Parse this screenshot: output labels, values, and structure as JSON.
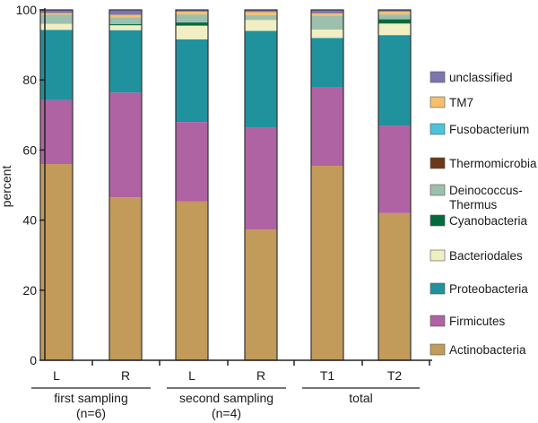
{
  "chart_data": {
    "type": "bar",
    "stacked": true,
    "ylabel": "percent",
    "ylim": [
      0,
      100
    ],
    "yticks": [
      0,
      20,
      40,
      60,
      80,
      100
    ],
    "grid": false,
    "legend_position": "right",
    "categories": [
      "L",
      "R",
      "L",
      "R",
      "T1",
      "T2"
    ],
    "groups": [
      {
        "name": "first sampling",
        "subtitle": "(n=6)",
        "categories": [
          0,
          1
        ]
      },
      {
        "name": "second sampling",
        "subtitle": "(n=4)",
        "categories": [
          2,
          3
        ]
      },
      {
        "name": "total",
        "subtitle": "",
        "categories": [
          4,
          5
        ]
      }
    ],
    "series": [
      {
        "name": "Actinobacteria",
        "color": "#c29a5a",
        "values": [
          56.0,
          46.5,
          45.3,
          37.3,
          55.5,
          42.0
        ]
      },
      {
        "name": "Firmicutes",
        "color": "#b063a3",
        "values": [
          18.2,
          29.9,
          22.7,
          29.1,
          22.3,
          25.0
        ]
      },
      {
        "name": "Proteobacteria",
        "color": "#20929e",
        "values": [
          20.1,
          17.8,
          23.6,
          27.6,
          14.2,
          25.8
        ]
      },
      {
        "name": "Bacteriodales",
        "color": "#f2eec3",
        "values": [
          1.7,
          1.4,
          3.9,
          3.1,
          2.5,
          3.3
        ]
      },
      {
        "name": "Cyanobacteria",
        "color": "#006b3c",
        "values": [
          0.0,
          0.3,
          0.9,
          0.0,
          0.1,
          1.2
        ]
      },
      {
        "name": "Deinococcus-Thermus",
        "color": "#9dbfae",
        "values": [
          2.6,
          2.0,
          2.3,
          1.4,
          3.8,
          1.4
        ]
      },
      {
        "name": "Thermomicrobia",
        "color": "#6b3a1a",
        "values": [
          0.0,
          0.0,
          0.0,
          0.0,
          0.0,
          0.0
        ]
      },
      {
        "name": "Fusobacterium",
        "color": "#4cc3dd",
        "values": [
          0.0,
          0.0,
          0.0,
          0.0,
          0.0,
          0.0
        ]
      },
      {
        "name": "TM7",
        "color": "#f6bf6e",
        "values": [
          0.5,
          0.7,
          0.8,
          0.9,
          0.6,
          0.8
        ]
      },
      {
        "name": "unclassified",
        "color": "#7b76b0",
        "values": [
          0.9,
          1.4,
          0.5,
          0.6,
          1.0,
          0.5
        ]
      }
    ],
    "legend_order": [
      "unclassified",
      "TM7",
      "Fusobacterium",
      "Thermomicrobia",
      "Deinococcus-Thermus",
      "Cyanobacteria",
      "Bacteriodales",
      "Proteobacteria",
      "Firmicutes",
      "Actinobacteria"
    ]
  }
}
